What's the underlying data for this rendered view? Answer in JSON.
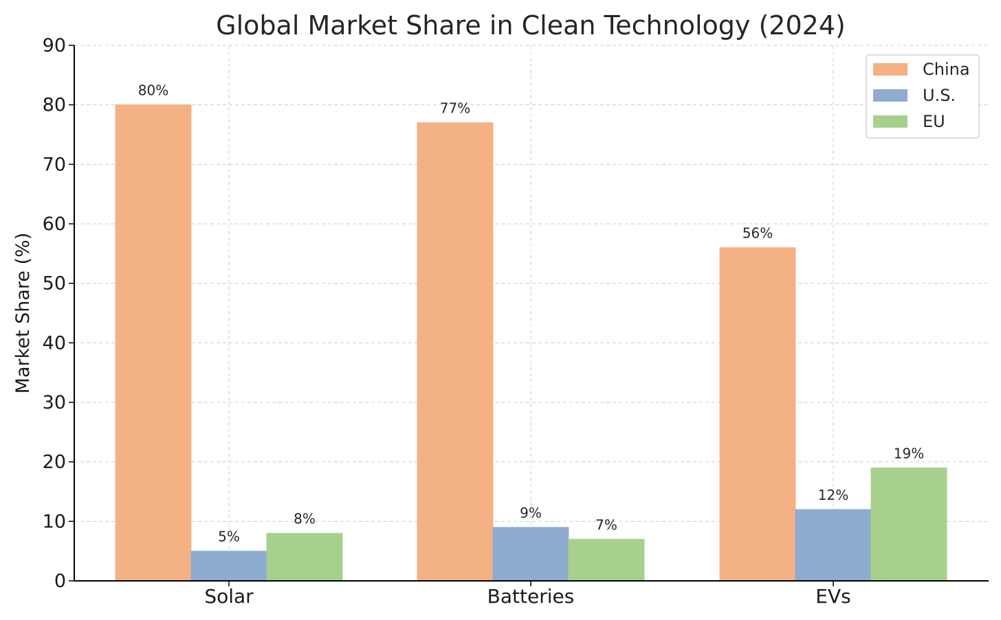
{
  "chart_data": {
    "type": "bar",
    "title": "Global Market Share in Clean Technology (2024)",
    "xlabel": "",
    "ylabel": "Market Share (%)",
    "ylim": [
      0,
      90
    ],
    "yticks": [
      0,
      10,
      20,
      30,
      40,
      50,
      60,
      70,
      80,
      90
    ],
    "categories": [
      "Solar",
      "Batteries",
      "EVs"
    ],
    "series": [
      {
        "name": "China",
        "values": [
          80,
          77,
          56
        ],
        "labels": [
          "80%",
          "77%",
          "56%"
        ],
        "color": "#F4B183"
      },
      {
        "name": "U.S.",
        "values": [
          5,
          9,
          12
        ],
        "labels": [
          "5%",
          "9%",
          "12%"
        ],
        "color": "#8EACCF"
      },
      {
        "name": "EU",
        "values": [
          8,
          7,
          19
        ],
        "labels": [
          "8%",
          "7%",
          "19%"
        ],
        "color": "#A8D08D"
      }
    ],
    "grid": true,
    "legend_position": "top-right"
  }
}
